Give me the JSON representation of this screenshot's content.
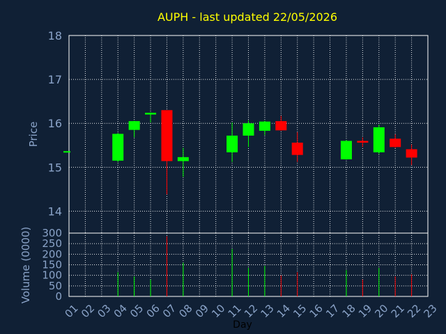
{
  "chart_data": [
    {
      "type": "candlestick",
      "title": "AUPH - last updated 22/05/2026",
      "xlabel": "Day",
      "ylabel": "Price",
      "ylim": [
        13.5,
        18
      ],
      "yticks": [
        14,
        15,
        16,
        17,
        18
      ],
      "xlim": [
        1,
        23
      ],
      "grid": true,
      "days": [
        "01",
        "02",
        "03",
        "04",
        "05",
        "06",
        "07",
        "08",
        "09",
        "10",
        "11",
        "12",
        "13",
        "14",
        "15",
        "16",
        "17",
        "18",
        "19",
        "20",
        "21",
        "22",
        "23"
      ],
      "candles": [
        {
          "day": 1,
          "open": 15.35,
          "high": 15.35,
          "low": 15.35,
          "close": 15.35
        },
        {
          "day": 4,
          "open": 15.15,
          "high": 15.78,
          "low": 15.12,
          "close": 15.76
        },
        {
          "day": 5,
          "open": 15.85,
          "high": 16.06,
          "low": 15.68,
          "close": 16.05
        },
        {
          "day": 6,
          "open": 16.2,
          "high": 16.25,
          "low": 16.02,
          "close": 16.24
        },
        {
          "day": 7,
          "open": 16.3,
          "high": 16.3,
          "low": 14.38,
          "close": 15.14
        },
        {
          "day": 8,
          "open": 15.14,
          "high": 15.44,
          "low": 14.78,
          "close": 15.23
        },
        {
          "day": 11,
          "open": 15.34,
          "high": 16.02,
          "low": 15.12,
          "close": 15.72
        },
        {
          "day": 12,
          "open": 15.72,
          "high": 16.07,
          "low": 15.46,
          "close": 16.0
        },
        {
          "day": 13,
          "open": 15.83,
          "high": 16.06,
          "low": 15.73,
          "close": 16.04
        },
        {
          "day": 14,
          "open": 16.05,
          "high": 16.17,
          "low": 15.83,
          "close": 15.84
        },
        {
          "day": 15,
          "open": 15.56,
          "high": 15.8,
          "low": 15.12,
          "close": 15.28
        },
        {
          "day": 18,
          "open": 15.18,
          "high": 15.62,
          "low": 15.17,
          "close": 15.6
        },
        {
          "day": 19,
          "open": 15.6,
          "high": 15.68,
          "low": 15.46,
          "close": 15.56
        },
        {
          "day": 20,
          "open": 15.34,
          "high": 15.97,
          "low": 15.3,
          "close": 15.91
        },
        {
          "day": 21,
          "open": 15.65,
          "high": 15.75,
          "low": 15.44,
          "close": 15.46
        },
        {
          "day": 22,
          "open": 15.41,
          "high": 15.52,
          "low": 15.05,
          "close": 15.22
        }
      ],
      "colors": {
        "up": "#00ff00",
        "down": "#ff0000",
        "title": "#ffff00",
        "axis_text": "#8aa3c8",
        "grid": "#ffffff",
        "background": "#102035"
      }
    },
    {
      "type": "bar",
      "xlabel": "Day",
      "ylabel": "Volume (0000)",
      "ylim": [
        0,
        300
      ],
      "yticks": [
        0,
        50,
        100,
        150,
        200,
        250,
        300
      ],
      "grid": true,
      "bars": [
        {
          "day": 4,
          "value": 115,
          "color": "up"
        },
        {
          "day": 5,
          "value": 95,
          "color": "up"
        },
        {
          "day": 6,
          "value": 80,
          "color": "up"
        },
        {
          "day": 7,
          "value": 285,
          "color": "down"
        },
        {
          "day": 8,
          "value": 160,
          "color": "up"
        },
        {
          "day": 11,
          "value": 225,
          "color": "up"
        },
        {
          "day": 12,
          "value": 135,
          "color": "up"
        },
        {
          "day": 13,
          "value": 145,
          "color": "up"
        },
        {
          "day": 14,
          "value": 100,
          "color": "down"
        },
        {
          "day": 15,
          "value": 115,
          "color": "down"
        },
        {
          "day": 18,
          "value": 125,
          "color": "up"
        },
        {
          "day": 19,
          "value": 80,
          "color": "down"
        },
        {
          "day": 20,
          "value": 135,
          "color": "up"
        },
        {
          "day": 21,
          "value": 95,
          "color": "down"
        },
        {
          "day": 22,
          "value": 105,
          "color": "down"
        }
      ]
    }
  ]
}
